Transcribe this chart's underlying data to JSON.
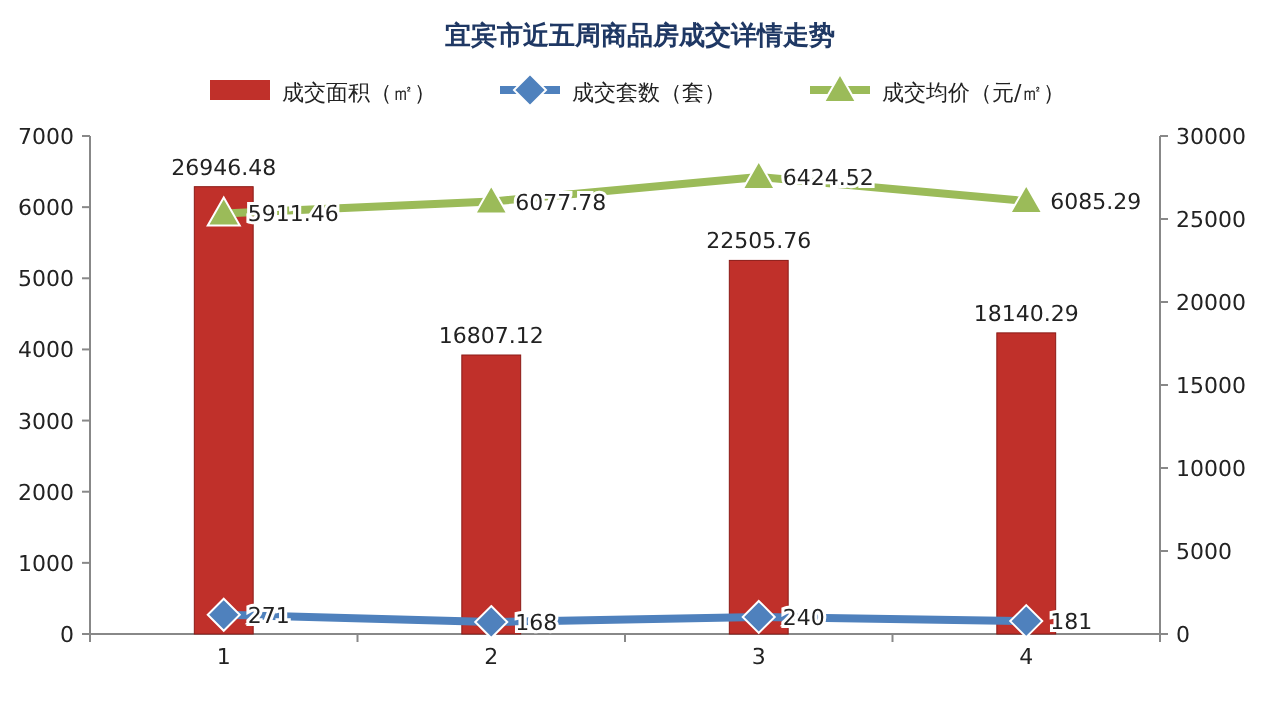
{
  "chart_data": {
    "type": "bar",
    "title": "宜宾市近五周商品房成交详情走势",
    "categories": [
      "1",
      "2",
      "3",
      "4"
    ],
    "series": [
      {
        "name": "成交面积（㎡）",
        "axis": "y2",
        "color": "#c0302a",
        "values": [
          26946.48,
          16807.12,
          22505.76,
          18140.29
        ]
      },
      {
        "name": "成交套数（套）",
        "type": "line",
        "color": "#4f81bd",
        "marker": "diamond",
        "values": [
          271,
          168,
          240,
          181
        ]
      },
      {
        "name": "成交均价（元/㎡）",
        "type": "line",
        "color": "#9bbb59",
        "marker": "triangle",
        "values": [
          5911.46,
          6077.78,
          6424.52,
          6085.29
        ]
      }
    ],
    "ylim": [
      0,
      7000
    ],
    "yticks": [
      0,
      1000,
      2000,
      3000,
      4000,
      5000,
      6000,
      7000
    ],
    "y2lim": [
      0,
      30000
    ],
    "y2ticks": [
      0,
      5000,
      10000,
      15000,
      20000,
      25000,
      30000
    ],
    "data_labels": true,
    "legend": "top",
    "grid": false
  }
}
